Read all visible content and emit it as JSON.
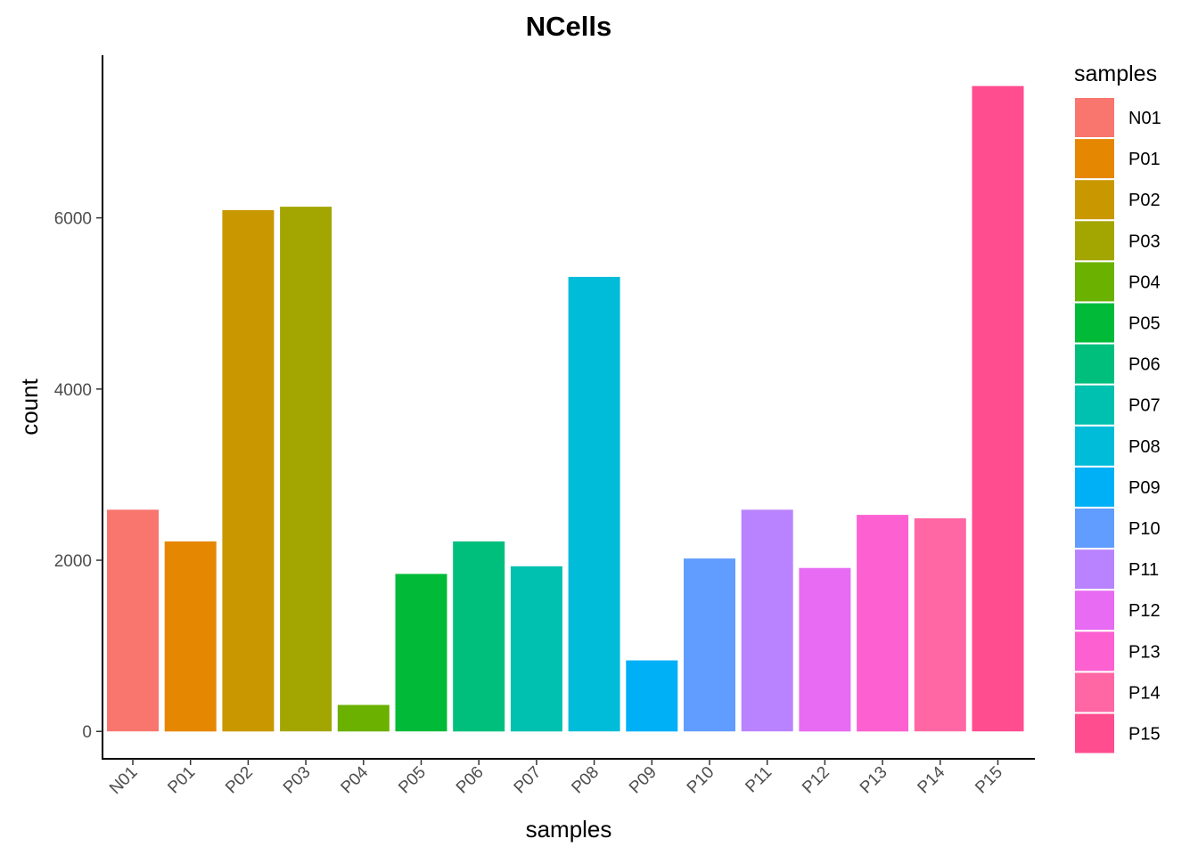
{
  "chart_data": {
    "type": "bar",
    "title": "NCells",
    "xlabel": "samples",
    "ylabel": "count",
    "categories": [
      "N01",
      "P01",
      "P02",
      "P03",
      "P04",
      "P05",
      "P06",
      "P07",
      "P08",
      "P09",
      "P10",
      "P11",
      "P12",
      "P13",
      "P14",
      "P15"
    ],
    "values": [
      2590,
      2220,
      6090,
      6130,
      310,
      1840,
      2220,
      1930,
      5310,
      830,
      2020,
      2590,
      1910,
      2530,
      2490,
      7540
    ],
    "colors": [
      "#F8766D",
      "#E58700",
      "#C99800",
      "#A3A500",
      "#6BB100",
      "#00BA38",
      "#00BF7D",
      "#00C0AF",
      "#00BCD8",
      "#00B0F6",
      "#619CFF",
      "#B983FF",
      "#E76BF3",
      "#FD61D1",
      "#FF67A4",
      "#FF4D8F"
    ],
    "yticks": [
      0,
      2000,
      4000,
      6000
    ],
    "ylim": [
      -320,
      7900
    ],
    "legend": {
      "title": "samples",
      "position": "right"
    },
    "grid": false
  }
}
